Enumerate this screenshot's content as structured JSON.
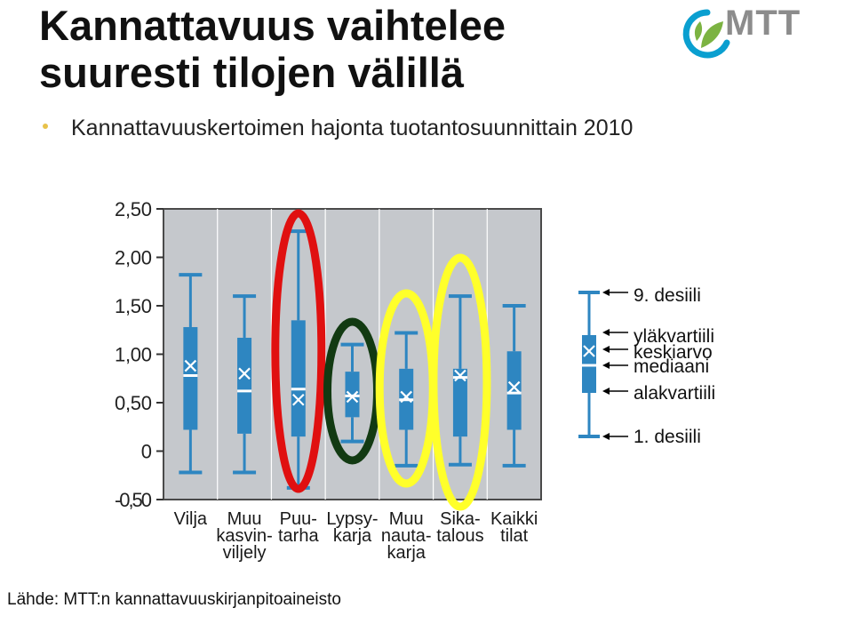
{
  "slide": {
    "title_line1": "Kannattavuus vaihtelee",
    "title_line2": "suuresti tilojen välillä",
    "bullet": "Kannattavuuskertoimen hajonta tuotantosuunnittain 2010",
    "source": "Lähde: MTT:n kannattavuuskirjanpitoaineisto",
    "logo_text": "MTT"
  },
  "colors": {
    "plot_bg": "#c5c8cc",
    "box": "#2e86c1",
    "median": "#ffffff",
    "mean_marker": "#ffffff",
    "highlight_red": "#e01010",
    "highlight_green": "#123a12",
    "highlight_yellow": "#ffff2a",
    "logo_green": "#7cb342",
    "logo_blue": "#0a9fd0",
    "logo_text": "#8c8c8c"
  },
  "chart_data": {
    "type": "boxplot",
    "ylim": [
      -0.5,
      2.5
    ],
    "yticks": [
      "2,50",
      "2,00",
      "1,50",
      "1,00",
      "0,50",
      "0",
      "-0,50"
    ],
    "ytick_values": [
      2.5,
      2.0,
      1.5,
      1.0,
      0.5,
      0.0,
      -0.5
    ],
    "categories": [
      [
        "Vilja"
      ],
      [
        "Muu",
        "kasvin-",
        "viljely"
      ],
      [
        "Puu-",
        "tarha"
      ],
      [
        "Lypsy-",
        "karja"
      ],
      [
        "Muu",
        "nauta-",
        "karja"
      ],
      [
        "Sika-",
        "talous"
      ],
      [
        "Kaikki",
        "tilat"
      ]
    ],
    "series": [
      {
        "d1": -0.22,
        "q1": 0.22,
        "median": 0.78,
        "mean": 0.88,
        "q3": 1.28,
        "d9": 1.82
      },
      {
        "d1": -0.22,
        "q1": 0.18,
        "median": 0.62,
        "mean": 0.8,
        "q3": 1.17,
        "d9": 1.6
      },
      {
        "d1": -0.38,
        "q1": 0.15,
        "median": 0.64,
        "mean": 0.53,
        "q3": 1.35,
        "d9": 2.27
      },
      {
        "d1": 0.1,
        "q1": 0.35,
        "median": 0.57,
        "mean": 0.56,
        "q3": 0.82,
        "d9": 1.1
      },
      {
        "d1": -0.15,
        "q1": 0.22,
        "median": 0.53,
        "mean": 0.56,
        "q3": 0.85,
        "d9": 1.22
      },
      {
        "d1": -0.14,
        "q1": 0.15,
        "median": 0.76,
        "mean": 0.78,
        "q3": 0.85,
        "d9": 1.6
      },
      {
        "d1": -0.15,
        "q1": 0.22,
        "median": 0.6,
        "mean": 0.66,
        "q3": 1.03,
        "d9": 1.5
      }
    ],
    "highlights": [
      {
        "category_index": 2,
        "color": "red"
      },
      {
        "category_index": 3,
        "color": "green"
      },
      {
        "category_index": 4,
        "color": "yellow"
      },
      {
        "category_index": 5,
        "color": "yellow"
      }
    ],
    "legend": {
      "d9": "9. desiili",
      "q3": "yläkvartiili",
      "mean": "keskiarvo",
      "median": "mediaani",
      "q1": "alakvartiili",
      "d1": "1. desiili"
    },
    "legend_placement": "right",
    "grid": "vertical"
  }
}
